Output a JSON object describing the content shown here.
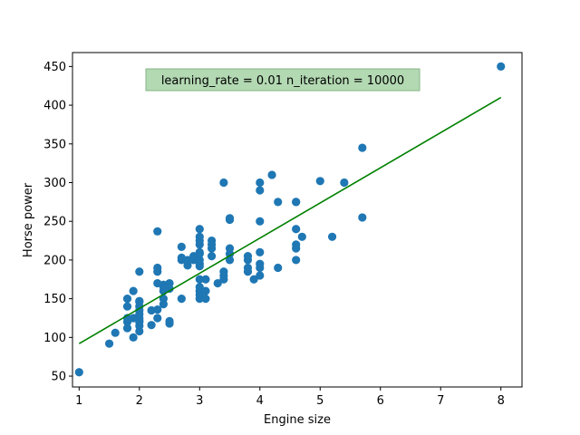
{
  "chart_data": {
    "type": "scatter",
    "title": "",
    "xlabel": "Engine size",
    "ylabel": "Horse power",
    "xlim": [
      0.89,
      8.35
    ],
    "ylim": [
      36,
      468
    ],
    "xticks": [
      1,
      2,
      3,
      4,
      5,
      6,
      7,
      8
    ],
    "yticks": [
      50,
      100,
      150,
      200,
      250,
      300,
      350,
      400,
      450
    ],
    "grid": false,
    "annotation": "learning_rate = 0.01  n_iteration = 10000",
    "colors": {
      "points": "#1f77b4",
      "fit_line": "#008000",
      "annotation_bg": "#b3d9b3",
      "annotation_border": "#85b585"
    },
    "series": [
      {
        "type": "scatter",
        "x": [
          1.0,
          1.5,
          1.6,
          1.8,
          1.8,
          1.8,
          1.8,
          1.8,
          1.9,
          1.9,
          1.9,
          2.0,
          2.0,
          2.0,
          2.0,
          2.0,
          2.0,
          2.0,
          2.0,
          2.0,
          2.0,
          2.0,
          2.2,
          2.2,
          2.3,
          2.3,
          2.3,
          2.3,
          2.3,
          2.3,
          2.4,
          2.4,
          2.4,
          2.4,
          2.4,
          2.5,
          2.5,
          2.5,
          2.5,
          2.7,
          2.7,
          2.7,
          2.7,
          2.8,
          2.8,
          2.9,
          2.9,
          3.0,
          3.0,
          3.0,
          3.0,
          3.0,
          3.0,
          3.0,
          3.0,
          3.0,
          3.0,
          3.0,
          3.0,
          3.0,
          3.0,
          3.1,
          3.1,
          3.1,
          3.2,
          3.2,
          3.2,
          3.2,
          3.3,
          3.4,
          3.4,
          3.4,
          3.4,
          3.5,
          3.5,
          3.5,
          3.5,
          3.5,
          3.8,
          3.8,
          3.8,
          3.8,
          3.9,
          4.0,
          4.0,
          4.0,
          4.0,
          4.0,
          4.0,
          4.0,
          4.2,
          4.3,
          4.3,
          4.6,
          4.6,
          4.6,
          4.6,
          4.6,
          4.6,
          4.7,
          5.0,
          5.2,
          5.4,
          5.7,
          5.7,
          8.0
        ],
        "y": [
          55,
          92,
          106,
          112,
          120,
          125,
          140,
          150,
          100,
          125,
          160,
          108,
          115,
          120,
          125,
          130,
          135,
          140,
          147,
          185,
          122,
          146,
          116,
          135,
          170,
          185,
          190,
          237,
          125,
          136,
          143,
          150,
          160,
          165,
          168,
          118,
          121,
          163,
          170,
          150,
          200,
          203,
          217,
          193,
          200,
          200,
          205,
          150,
          155,
          160,
          165,
          175,
          192,
          195,
          200,
          210,
          220,
          225,
          230,
          240,
          208,
          150,
          160,
          175,
          205,
          215,
          220,
          225,
          170,
          175,
          180,
          185,
          300,
          200,
          208,
          215,
          252,
          254,
          185,
          190,
          200,
          205,
          175,
          180,
          190,
          195,
          210,
          250,
          290,
          300,
          310,
          190,
          275,
          200,
          215,
          220,
          240,
          275,
          275,
          230,
          302,
          230,
          300,
          255,
          345,
          450
        ]
      },
      {
        "type": "line",
        "name": "",
        "x": [
          1.0,
          8.0
        ],
        "y": [
          92,
          410
        ]
      }
    ]
  }
}
